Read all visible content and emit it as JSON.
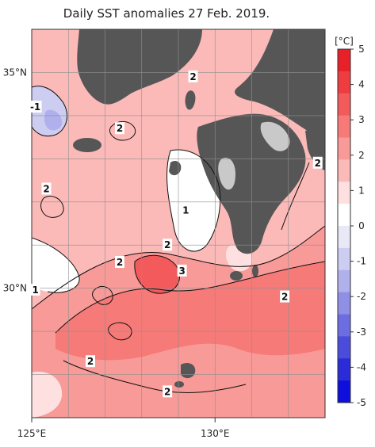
{
  "title": "Daily SST anomalies 27 Feb. 2019.",
  "lon_labels": [
    "125°E",
    "130°E"
  ],
  "lat_labels": [
    "35°N",
    "30°N"
  ],
  "colorbar": {
    "unit": "[°C]",
    "ticks": [
      "5",
      "4",
      "3",
      "2",
      "1",
      "0",
      "-1",
      "-2",
      "-3",
      "-4",
      "-5"
    ],
    "colors": [
      "#e8202a",
      "#ee3c40",
      "#f25a5c",
      "#f57a78",
      "#f89a97",
      "#fbbab8",
      "#fde0df",
      "#ffffff",
      "#e8e8f7",
      "#cdcdf1",
      "#b0b0ec",
      "#8f8fe6",
      "#6d6de2",
      "#4b4bdc",
      "#2b2bd8",
      "#0e0edd"
    ]
  },
  "contour_labels": [
    {
      "text": "2",
      "lon": 129.4,
      "lat": 34.9
    },
    {
      "text": "-1",
      "lon": 125.1,
      "lat": 34.2
    },
    {
      "text": "2",
      "lon": 127.4,
      "lat": 33.7
    },
    {
      "text": "2",
      "lon": 125.4,
      "lat": 32.3
    },
    {
      "text": "2",
      "lon": 132.8,
      "lat": 32.9
    },
    {
      "text": "1",
      "lon": 129.2,
      "lat": 31.8
    },
    {
      "text": "2",
      "lon": 128.7,
      "lat": 31.0
    },
    {
      "text": "2",
      "lon": 127.4,
      "lat": 30.6
    },
    {
      "text": "3",
      "lon": 129.1,
      "lat": 30.4
    },
    {
      "text": "1",
      "lon": 125.1,
      "lat": 29.96
    },
    {
      "text": "2",
      "lon": 131.9,
      "lat": 29.8
    },
    {
      "text": "2",
      "lon": 126.6,
      "lat": 28.3
    },
    {
      "text": "2",
      "lon": 128.7,
      "lat": 27.6
    }
  ],
  "colors": {
    "land": "#565656",
    "frame": "#333333",
    "grid": "#8f8f8f",
    "warm_base": "#fbbab8",
    "warm_mid": "#f89a97",
    "warm_strong": "#f57a78",
    "warm_peak": "#f25a5c",
    "cool": "#cdcdf1",
    "neutral": "#ffffff"
  }
}
